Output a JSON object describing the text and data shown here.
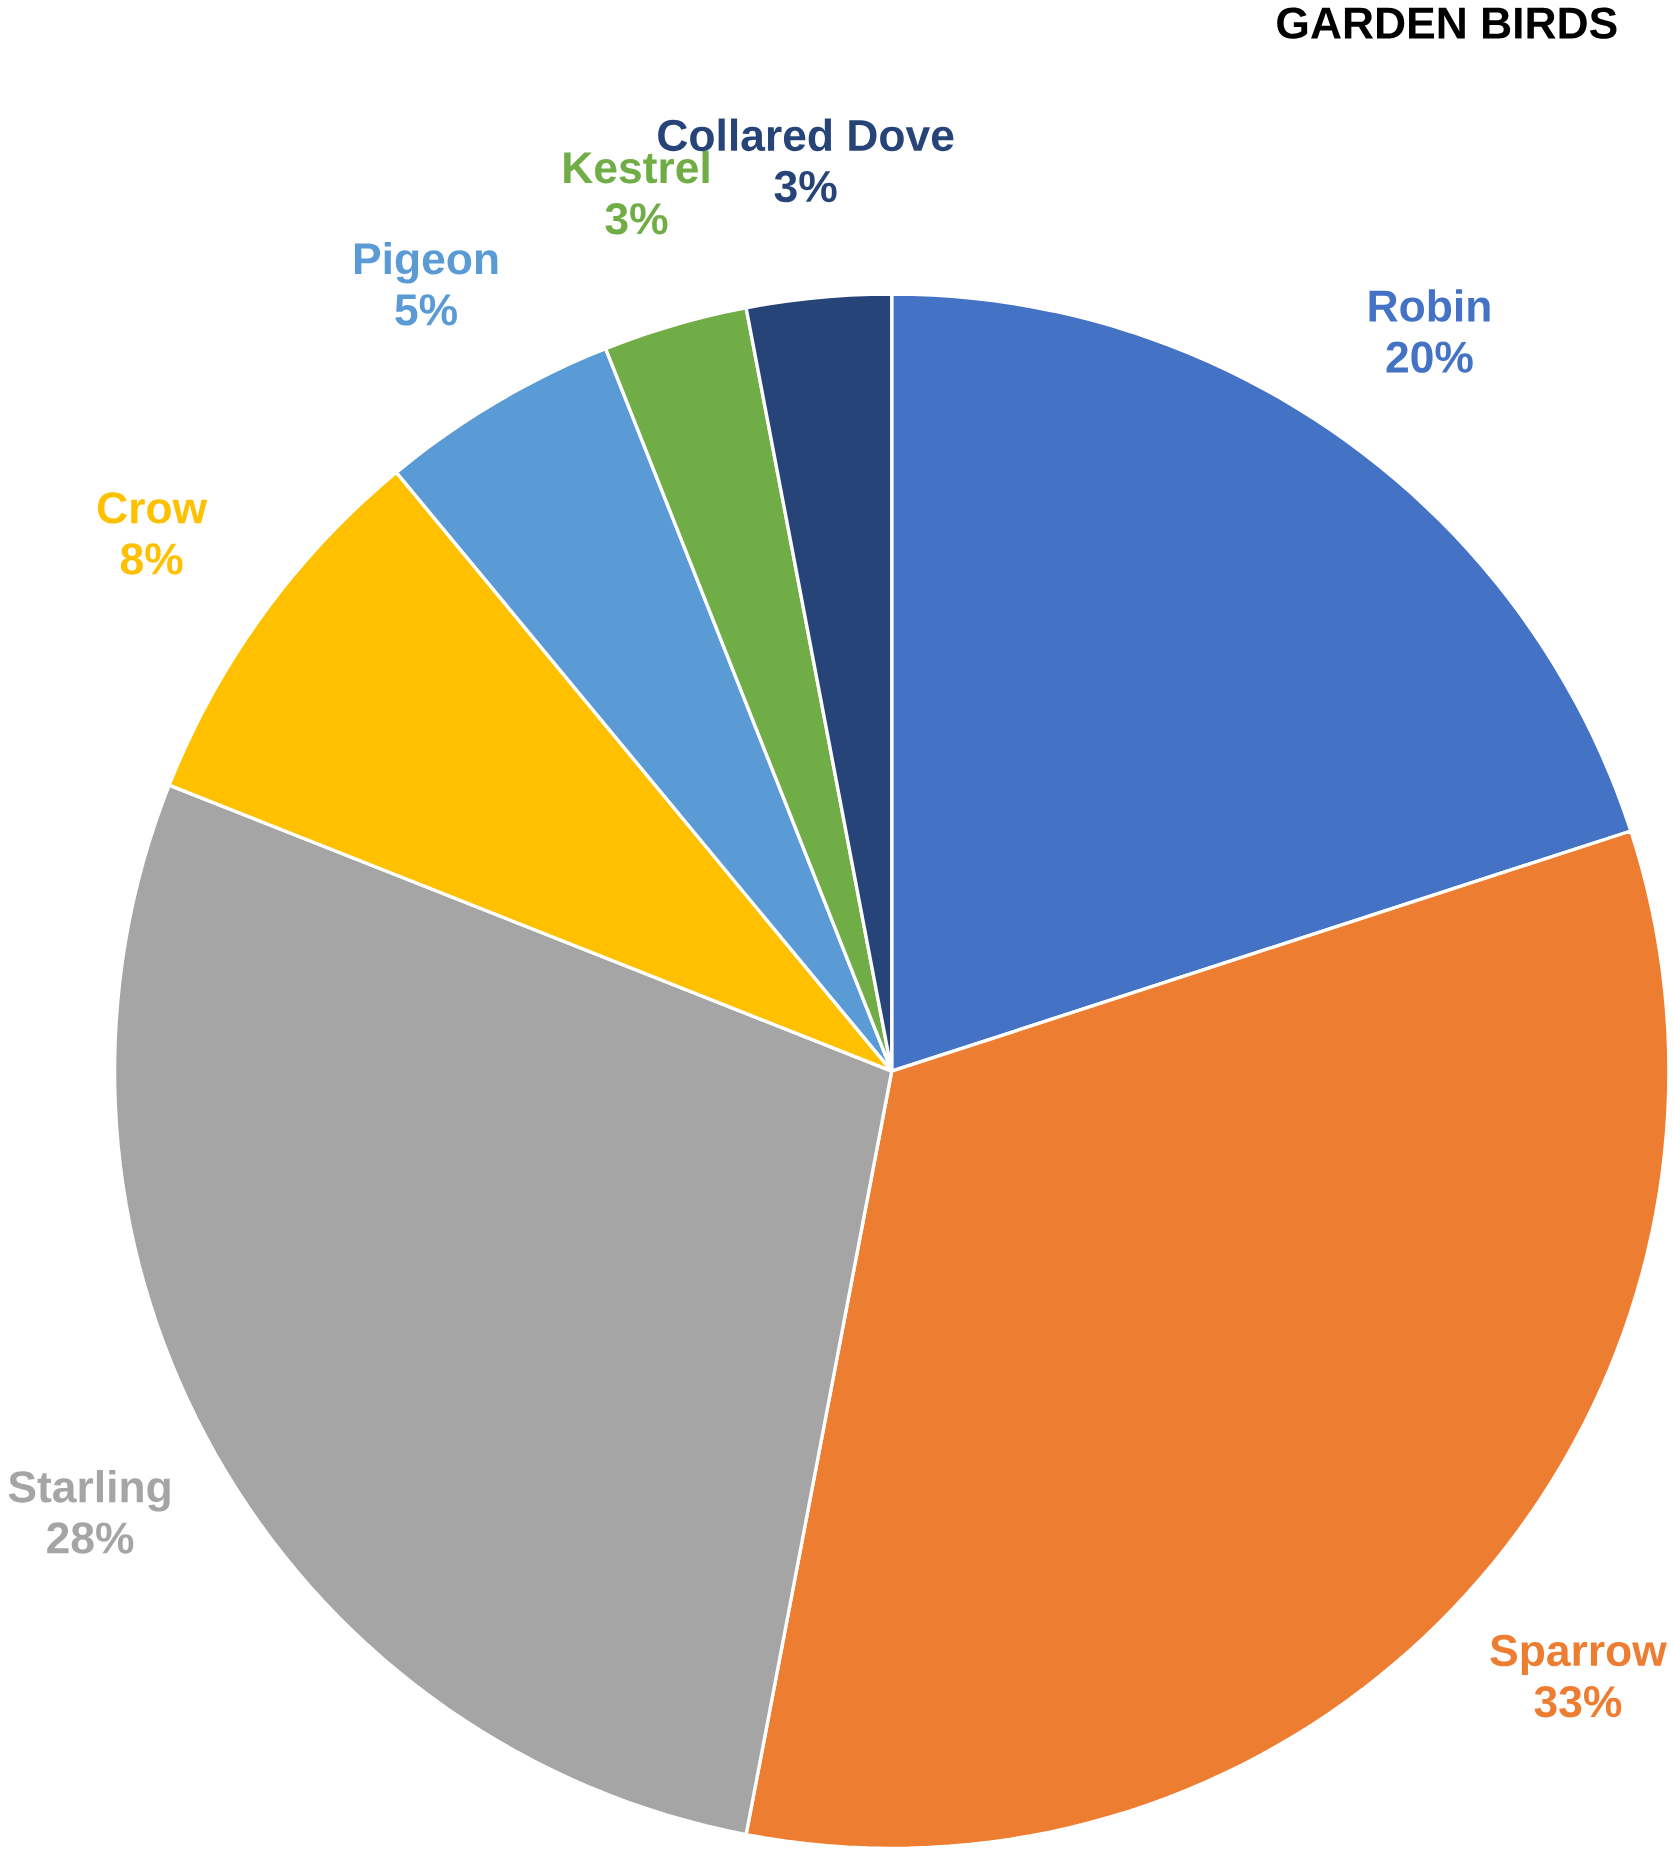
{
  "chart_data": {
    "type": "pie",
    "title": "GARDEN BIRDS",
    "categories": [
      "Robin",
      "Sparrow",
      "Starling",
      "Crow",
      "Pigeon",
      "Kestrel",
      "Collared Dove"
    ],
    "values": [
      20,
      33,
      28,
      8,
      5,
      3,
      3
    ],
    "value_labels": [
      "20%",
      "33%",
      "28%",
      "8%",
      "5%",
      "3%",
      "3%"
    ],
    "colors": [
      "#4472c4",
      "#ed7d31",
      "#a5a5a5",
      "#ffc000",
      "#5b9bd5",
      "#70ad47",
      "#264478"
    ]
  }
}
